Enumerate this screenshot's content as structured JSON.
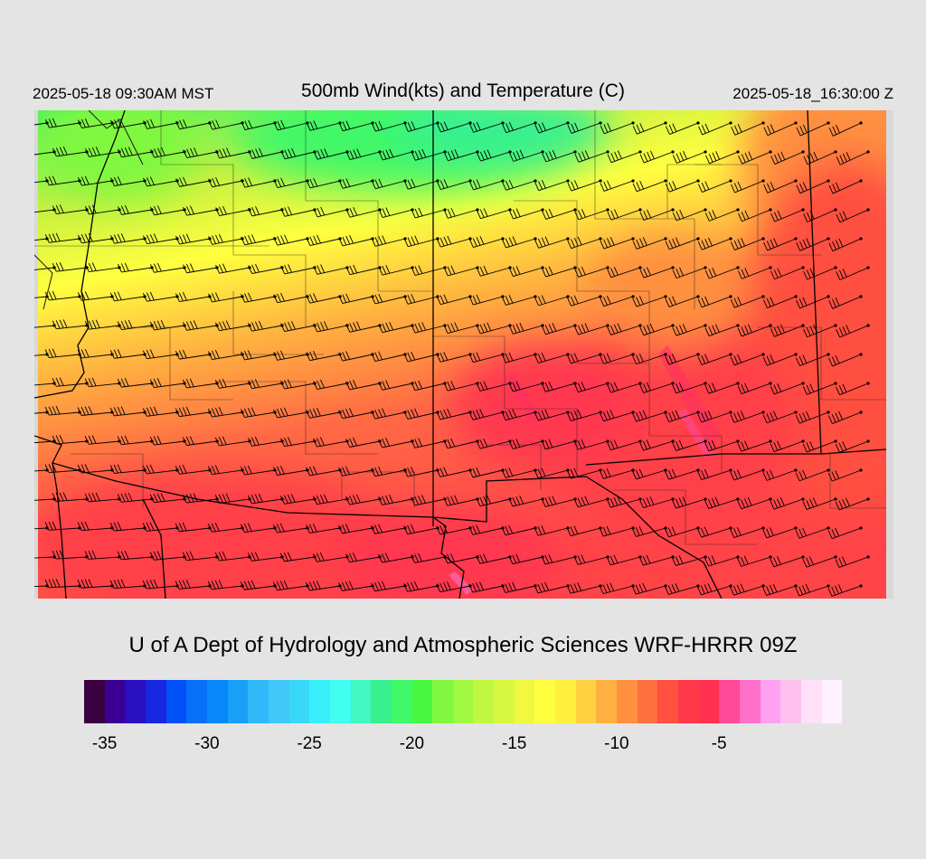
{
  "header": {
    "valid_time_local": "2025-05-18 09:30AM MST",
    "title": "500mb Wind(kts) and Temperature (C)",
    "valid_time_utc": "2025-05-18_16:30:00 Z"
  },
  "credit": "U of A Dept of Hydrology and Atmospheric Sciences WRF-HRRR 09Z",
  "map": {
    "variable": "500mb temperature (C) with wind barbs (kts)",
    "temperature_range_c": [
      -21,
      -7
    ],
    "coldest_region": "north (green, about -20 C)",
    "warmest_region": "south-east (red to magenta, about -7 C)",
    "wind_direction": "westerly to west-southwesterly"
  },
  "colorbar": {
    "colors": [
      "#3a0040",
      "#3a0093",
      "#2a10c0",
      "#1828e0",
      "#0050f8",
      "#0870f8",
      "#0888f8",
      "#18a0f8",
      "#30b8f8",
      "#40c8f8",
      "#38d8f8",
      "#38eef8",
      "#40fff0",
      "#40f8c0",
      "#38f090",
      "#40f868",
      "#48f840",
      "#80f840",
      "#a0f840",
      "#c0f840",
      "#d8f840",
      "#f0f840",
      "#ffff40",
      "#fff040",
      "#ffd040",
      "#ffb040",
      "#ff9040",
      "#ff7040",
      "#ff5040",
      "#ff3848",
      "#ff3050",
      "#ff4898",
      "#ff70c8",
      "#ffa0f0",
      "#ffc0f0",
      "#ffe0f8",
      "#fff0ff"
    ],
    "tick_labels": [
      "-35",
      "-30",
      "-25",
      "-20",
      "-15",
      "-10",
      "-5"
    ]
  }
}
